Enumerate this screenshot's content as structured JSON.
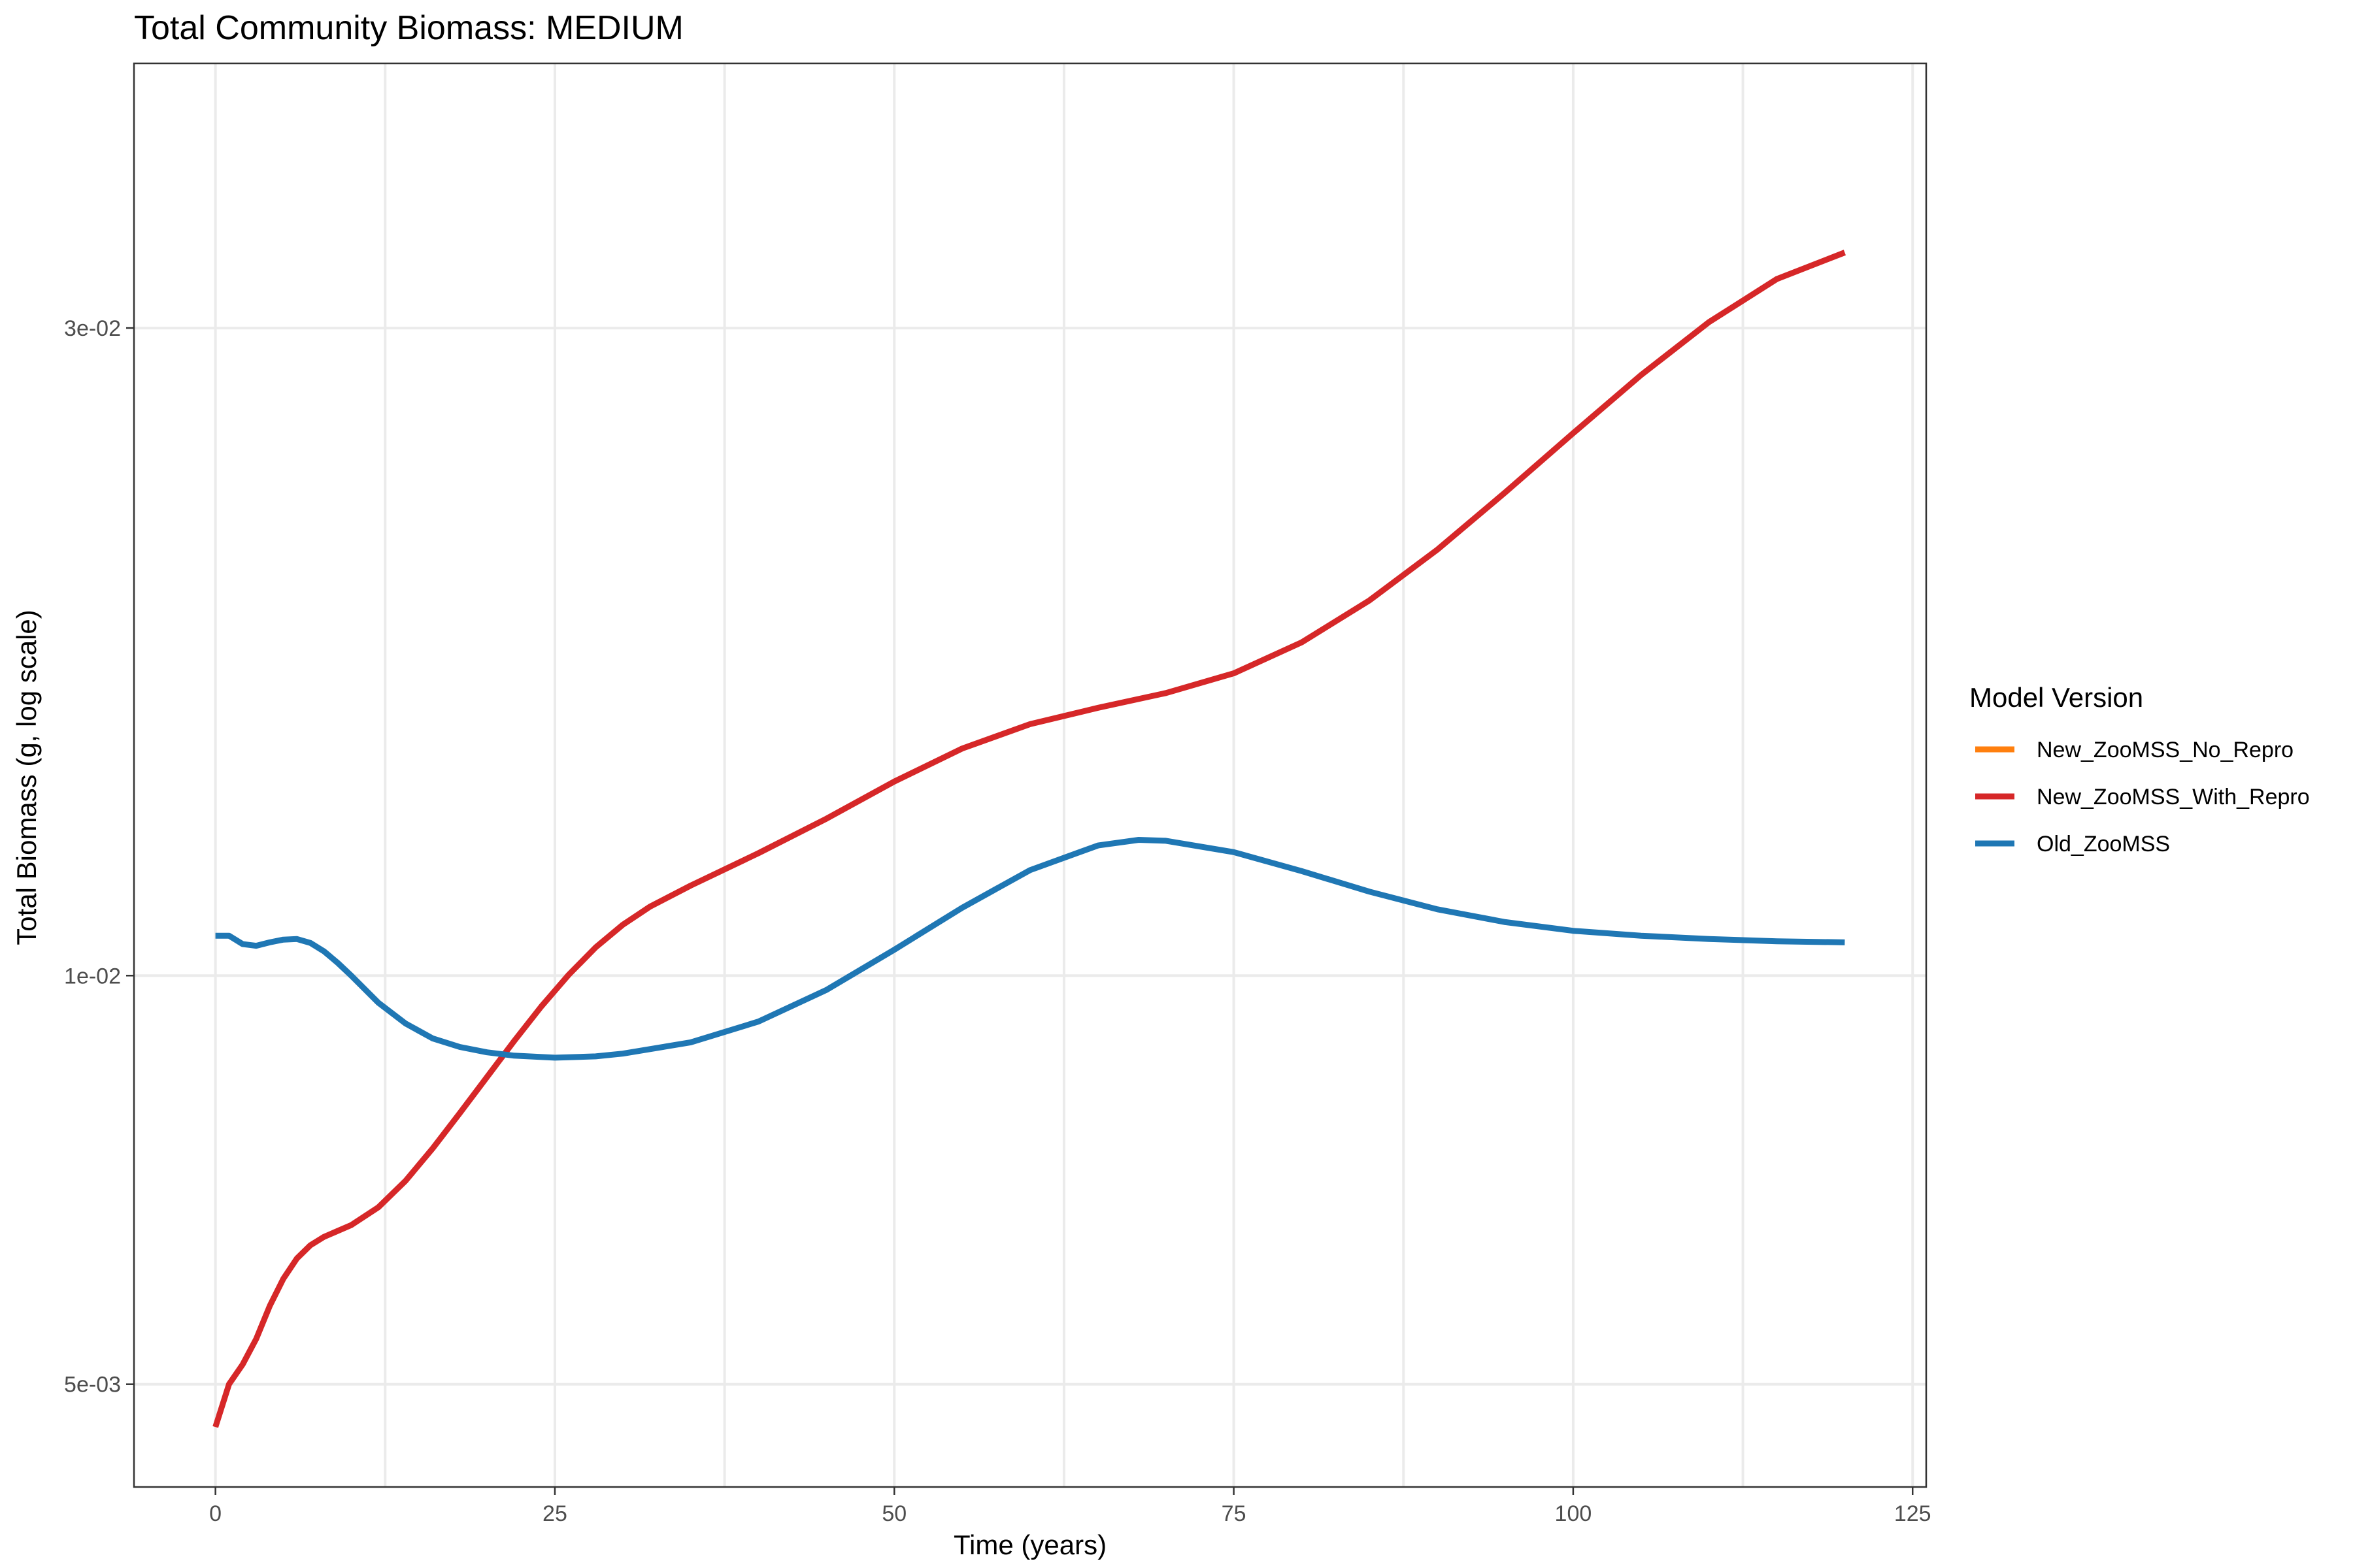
{
  "chart_data": {
    "type": "line",
    "title": "Total Community Biomass: MEDIUM",
    "xlabel": "Time (years)",
    "ylabel": "Total Biomass (g, log scale)",
    "xlim": [
      -6,
      126
    ],
    "ylim": [
      0.0042,
      0.047
    ],
    "y_scale": "log",
    "grid": true,
    "legend_position": "right",
    "legend_title": "Model Version",
    "x_ticks": [
      {
        "value": 0,
        "label": "0"
      },
      {
        "value": 25,
        "label": "25"
      },
      {
        "value": 50,
        "label": "50"
      },
      {
        "value": 75,
        "label": "75"
      },
      {
        "value": 100,
        "label": "100"
      },
      {
        "value": 125,
        "label": "125"
      }
    ],
    "y_ticks": [
      {
        "value": 0.005,
        "label": "5e-03"
      },
      {
        "value": 0.01,
        "label": "1e-02"
      },
      {
        "value": 0.03,
        "label": "3e-02"
      }
    ],
    "series": [
      {
        "name": "New_ZooMSS_No_Repro",
        "color": "#ff7f0e",
        "points": []
      },
      {
        "name": "New_ZooMSS_With_Repro",
        "color": "#d62728",
        "points": [
          [
            0,
            0.00465
          ],
          [
            1,
            0.005
          ],
          [
            2,
            0.00517
          ],
          [
            3,
            0.0054
          ],
          [
            4,
            0.00571
          ],
          [
            5,
            0.00598
          ],
          [
            6,
            0.00619
          ],
          [
            7,
            0.00633
          ],
          [
            8,
            0.00642
          ],
          [
            10,
            0.00655
          ],
          [
            12,
            0.00675
          ],
          [
            14,
            0.00706
          ],
          [
            16,
            0.00746
          ],
          [
            18,
            0.00792
          ],
          [
            20,
            0.00842
          ],
          [
            22,
            0.00895
          ],
          [
            24,
            0.00949
          ],
          [
            26,
            0.01001
          ],
          [
            28,
            0.01049
          ],
          [
            30,
            0.0109
          ],
          [
            32,
            0.01124
          ],
          [
            35,
            0.01165
          ],
          [
            40,
            0.01231
          ],
          [
            45,
            0.01305
          ],
          [
            50,
            0.0139
          ],
          [
            55,
            0.0147
          ],
          [
            60,
            0.01532
          ],
          [
            65,
            0.01575
          ],
          [
            70,
            0.01615
          ],
          [
            75,
            0.0167
          ],
          [
            80,
            0.0176
          ],
          [
            85,
            0.0189
          ],
          [
            90,
            0.0206
          ],
          [
            95,
            0.0227
          ],
          [
            100,
            0.0251
          ],
          [
            105,
            0.0277
          ],
          [
            110,
            0.0303
          ],
          [
            115,
            0.0326
          ],
          [
            120,
            0.0341
          ]
        ]
      },
      {
        "name": "Old_ZooMSS",
        "color": "#1f77b4",
        "points": [
          [
            0,
            0.0107
          ],
          [
            1,
            0.0107
          ],
          [
            2,
            0.01055
          ],
          [
            3,
            0.01052
          ],
          [
            4,
            0.01058
          ],
          [
            5,
            0.01063
          ],
          [
            6,
            0.01064
          ],
          [
            7,
            0.01057
          ],
          [
            8,
            0.01042
          ],
          [
            9,
            0.01022
          ],
          [
            10,
            0.01
          ],
          [
            12,
            0.00955
          ],
          [
            14,
            0.00922
          ],
          [
            16,
            0.00899
          ],
          [
            18,
            0.00886
          ],
          [
            20,
            0.00878
          ],
          [
            22,
            0.00873
          ],
          [
            25,
            0.0087
          ],
          [
            28,
            0.00872
          ],
          [
            30,
            0.00876
          ],
          [
            35,
            0.00893
          ],
          [
            40,
            0.00925
          ],
          [
            45,
            0.00976
          ],
          [
            50,
            0.01045
          ],
          [
            55,
            0.01122
          ],
          [
            60,
            0.01196
          ],
          [
            65,
            0.01247
          ],
          [
            68,
            0.01259
          ],
          [
            70,
            0.01257
          ],
          [
            75,
            0.01233
          ],
          [
            80,
            0.01194
          ],
          [
            85,
            0.01153
          ],
          [
            90,
            0.01119
          ],
          [
            95,
            0.01095
          ],
          [
            100,
            0.01079
          ],
          [
            105,
            0.0107
          ],
          [
            110,
            0.01064
          ],
          [
            115,
            0.0106
          ],
          [
            120,
            0.01058
          ]
        ]
      }
    ]
  }
}
